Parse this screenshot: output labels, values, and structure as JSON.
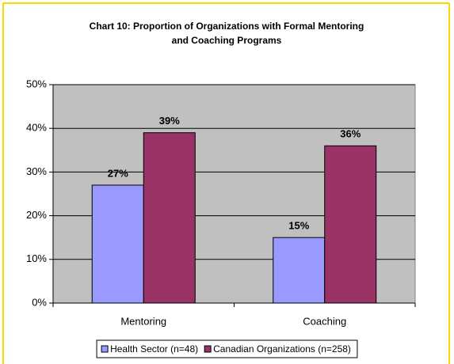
{
  "chart_data": {
    "type": "bar",
    "title": "Chart 10: Proportion of Organizations with Formal Mentoring and Coaching Programs",
    "categories": [
      "Mentoring",
      "Coaching"
    ],
    "series": [
      {
        "name": "Health Sector (n=48)",
        "color": "#9999ff",
        "values": [
          27,
          15
        ],
        "value_labels": [
          "27%",
          "15%"
        ]
      },
      {
        "name": "Canadian Organizations (n=258)",
        "color": "#993366",
        "values": [
          39,
          36
        ],
        "value_labels": [
          "39%",
          "36%"
        ]
      }
    ],
    "ylim": [
      0,
      50
    ],
    "yticks": [
      {
        "value": 0,
        "label": "0%"
      },
      {
        "value": 10,
        "label": "10%"
      },
      {
        "value": 20,
        "label": "20%"
      },
      {
        "value": 30,
        "label": "30%"
      },
      {
        "value": 40,
        "label": "40%"
      },
      {
        "value": 50,
        "label": "50%"
      }
    ],
    "grid": true,
    "legend": "bottom",
    "plot_background": "#c0c0c0"
  }
}
